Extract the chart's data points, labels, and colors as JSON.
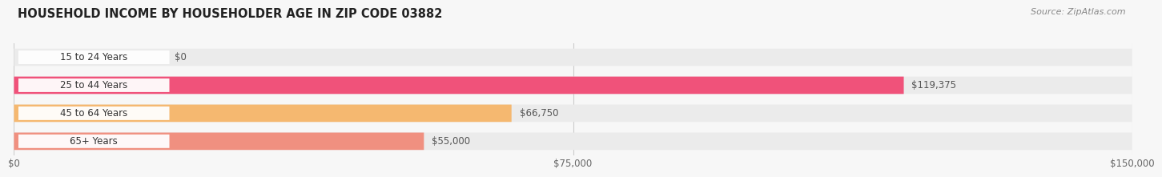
{
  "title": "HOUSEHOLD INCOME BY HOUSEHOLDER AGE IN ZIP CODE 03882",
  "source": "Source: ZipAtlas.com",
  "categories": [
    "15 to 24 Years",
    "25 to 44 Years",
    "45 to 64 Years",
    "65+ Years"
  ],
  "values": [
    0,
    119375,
    66750,
    55000
  ],
  "bar_colors": [
    "#b0b0e0",
    "#f0527a",
    "#f5b870",
    "#f09080"
  ],
  "bar_bg_color": "#ebebeb",
  "value_labels": [
    "$0",
    "$119,375",
    "$66,750",
    "$55,000"
  ],
  "value_label_colors": [
    "#666666",
    "#ffffff",
    "#555555",
    "#555555"
  ],
  "x_ticks": [
    0,
    75000,
    150000
  ],
  "x_tick_labels": [
    "$0",
    "$75,000",
    "$150,000"
  ],
  "xlim": [
    0,
    150000
  ],
  "title_fontsize": 10.5,
  "source_fontsize": 8,
  "label_fontsize": 8.5,
  "tick_fontsize": 8.5,
  "bg_color": "#f7f7f7",
  "pill_bg": "#ffffff",
  "grid_color": "#cccccc",
  "bar_height": 0.62,
  "bar_gap": 0.38
}
